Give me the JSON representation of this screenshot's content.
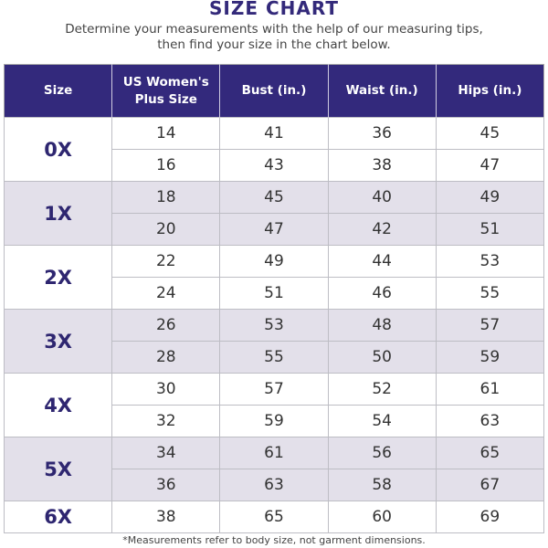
{
  "title": "SIZE CHART",
  "subtitle_line1": "Determine your measurements with the help of our measuring tips,",
  "subtitle_line2": "then find your size in the chart below.",
  "headers": [
    "Size",
    "US Women's Plus Size",
    "Bust (in.)",
    "Waist (in.)",
    "Hips (in.)"
  ],
  "groups": [
    {
      "size": "0X",
      "rows": [
        [
          "14",
          "41",
          "36",
          "45"
        ],
        [
          "16",
          "43",
          "38",
          "47"
        ]
      ]
    },
    {
      "size": "1X",
      "rows": [
        [
          "18",
          "45",
          "40",
          "49"
        ],
        [
          "20",
          "47",
          "42",
          "51"
        ]
      ]
    },
    {
      "size": "2X",
      "rows": [
        [
          "22",
          "49",
          "44",
          "53"
        ],
        [
          "24",
          "51",
          "46",
          "55"
        ]
      ]
    },
    {
      "size": "3X",
      "rows": [
        [
          "26",
          "53",
          "48",
          "57"
        ],
        [
          "28",
          "55",
          "50",
          "59"
        ]
      ]
    },
    {
      "size": "4X",
      "rows": [
        [
          "30",
          "57",
          "52",
          "61"
        ],
        [
          "32",
          "59",
          "54",
          "63"
        ]
      ]
    },
    {
      "size": "5X",
      "rows": [
        [
          "34",
          "61",
          "56",
          "65"
        ],
        [
          "36",
          "63",
          "58",
          "67"
        ]
      ]
    },
    {
      "size": "6X",
      "rows": [
        [
          "38",
          "65",
          "60",
          "69"
        ]
      ]
    }
  ],
  "footnote": "*Measurements refer to body size, not garment dimensions.",
  "colors": {
    "header": "#33297c",
    "shade": "#e3e0ea",
    "title": "#33297a"
  }
}
